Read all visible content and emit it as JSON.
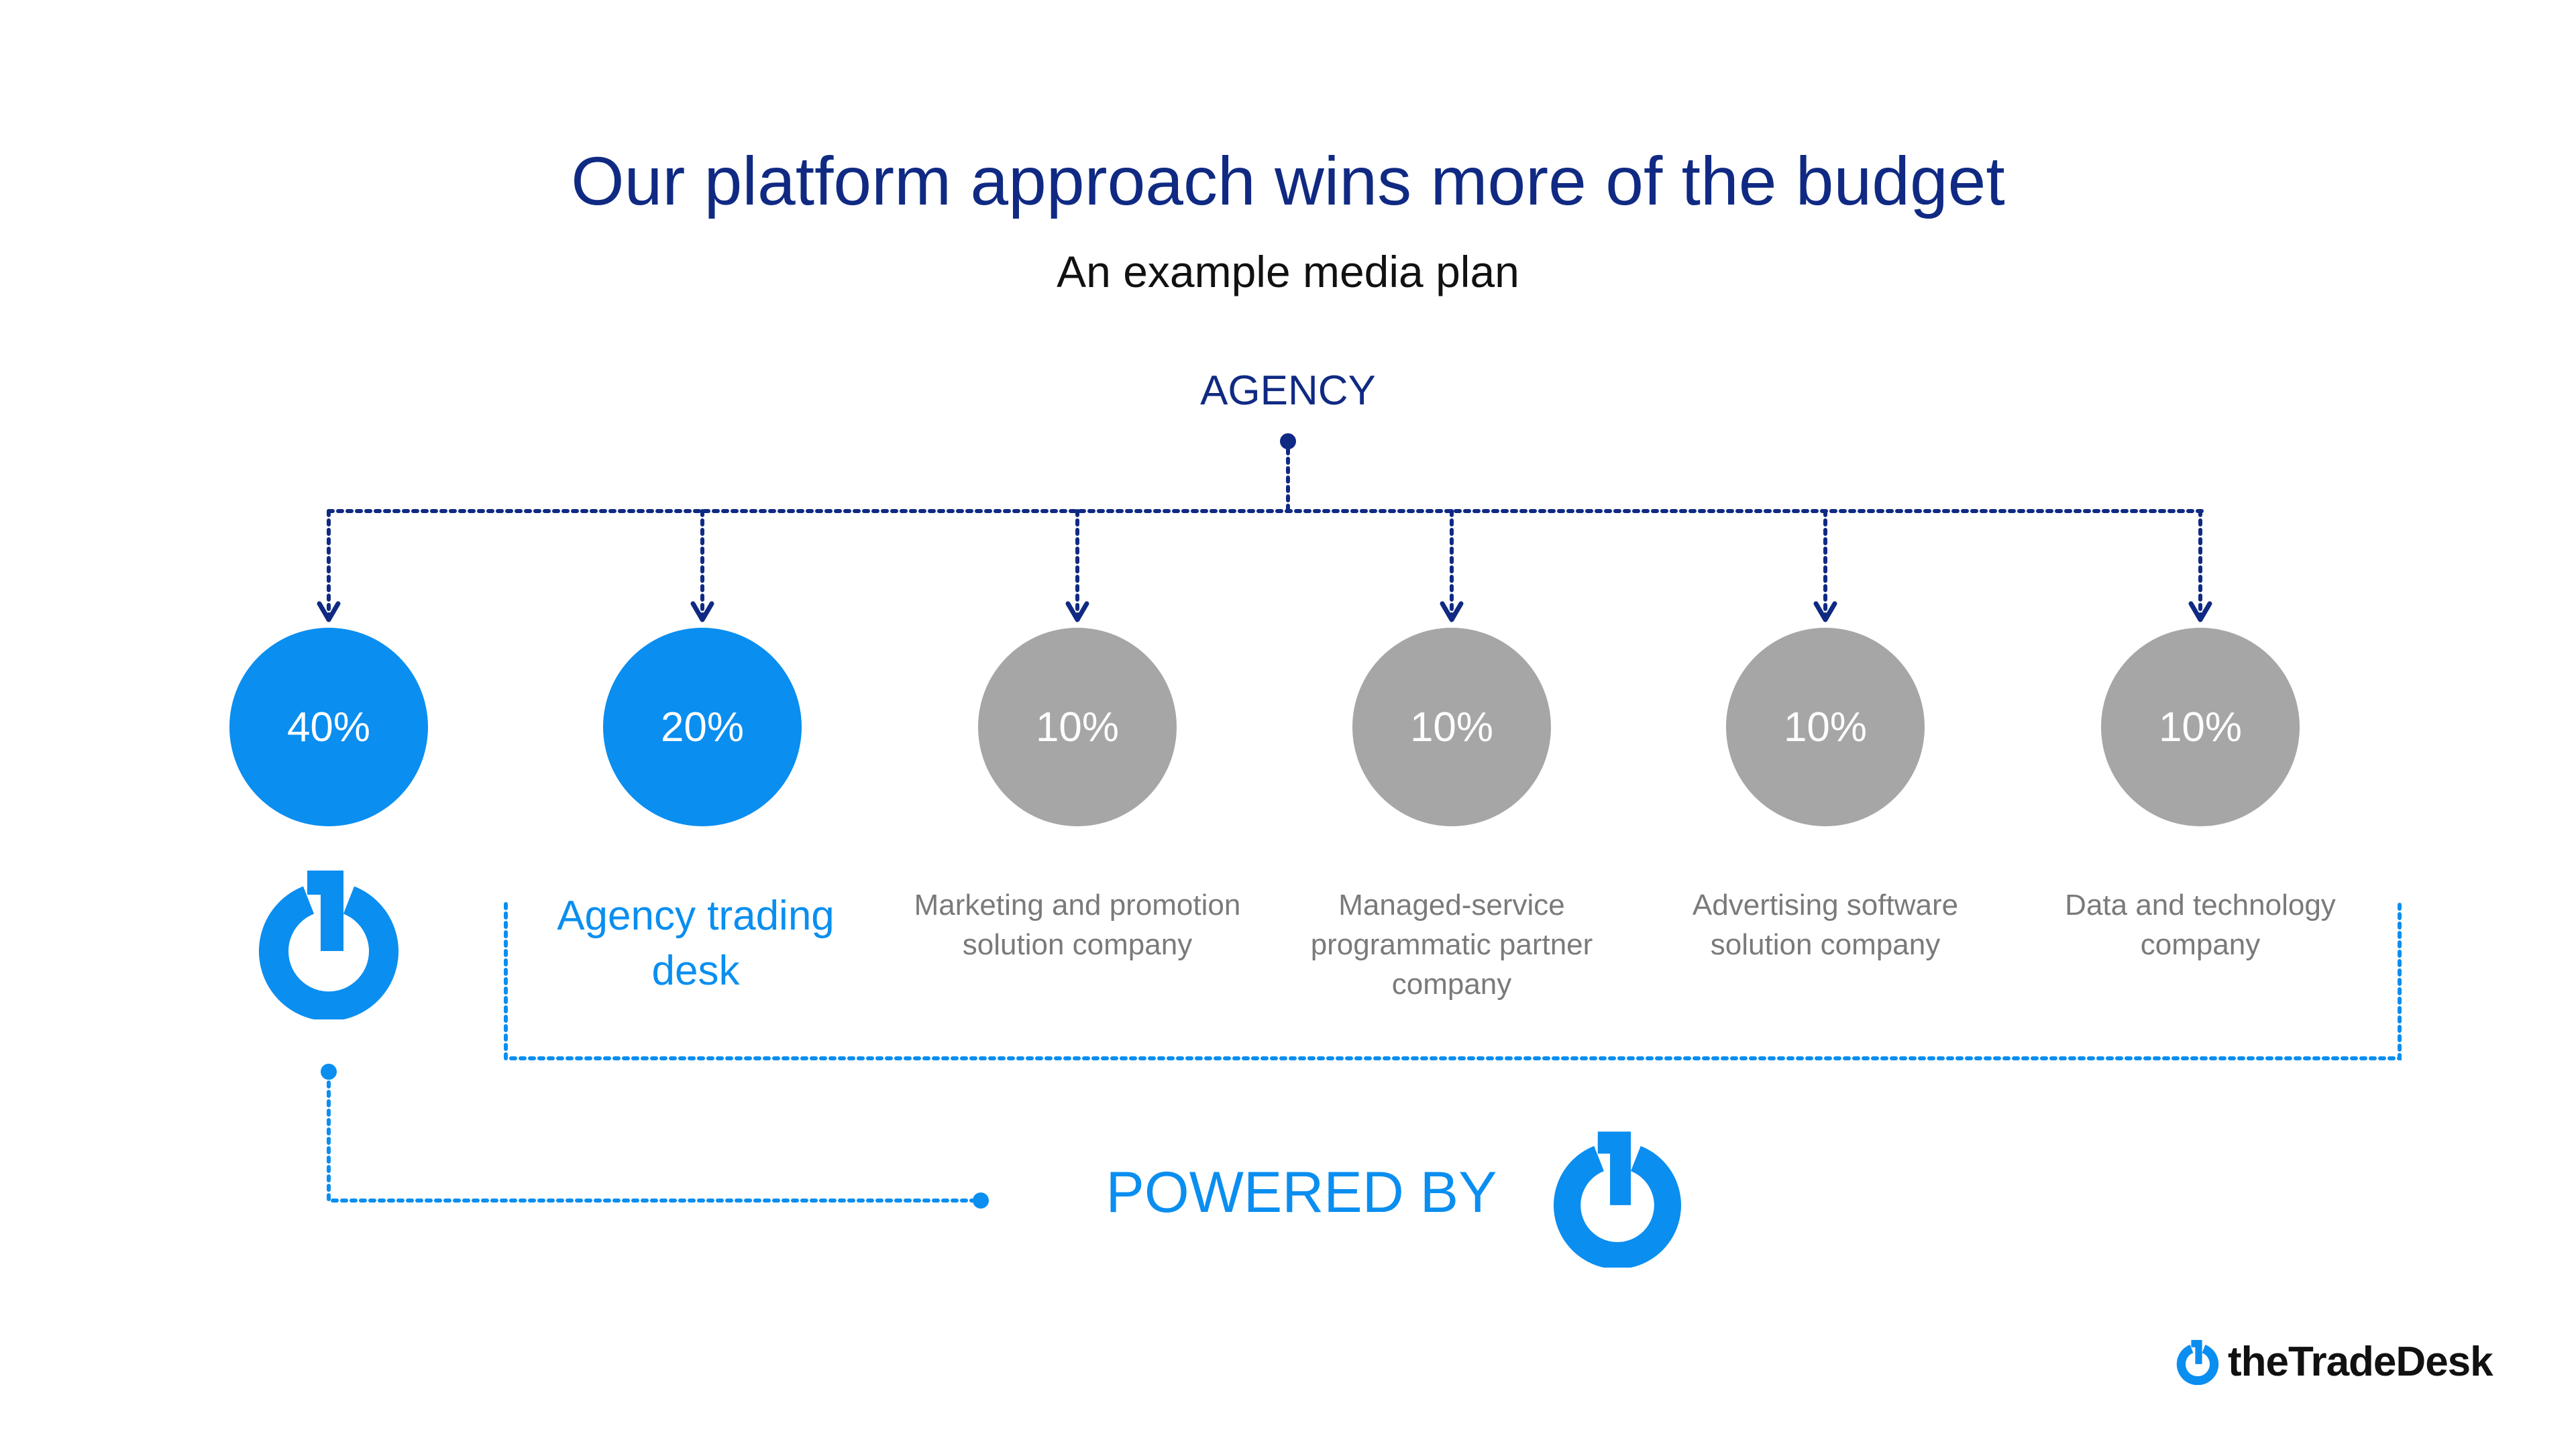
{
  "title": "Our platform approach wins more of the budget",
  "subtitle": "An example media plan",
  "root": {
    "label": "AGENCY"
  },
  "nodes": [
    {
      "value": "40%",
      "label": "",
      "style": "blue",
      "has_logo": true
    },
    {
      "value": "20%",
      "label": "Agency trading desk",
      "style": "blue"
    },
    {
      "value": "10%",
      "label": "Marketing and promotion solution company",
      "style": "gray"
    },
    {
      "value": "10%",
      "label": "Managed-service programmatic partner company",
      "style": "gray"
    },
    {
      "value": "10%",
      "label": "Advertising software solution company",
      "style": "gray"
    },
    {
      "value": "10%",
      "label": "Data and technology company",
      "style": "gray"
    }
  ],
  "powered_by": {
    "label": "POWERED BY",
    "icon": "tradedesk-power-icon"
  },
  "brand": {
    "name": "theTradeDesk",
    "icon": "tradedesk-power-icon"
  },
  "colors": {
    "navy": "#102a83",
    "accent_blue": "#0a8ef0",
    "neutral_gray": "#a6a6a6",
    "label_gray": "#7a7a7a"
  }
}
